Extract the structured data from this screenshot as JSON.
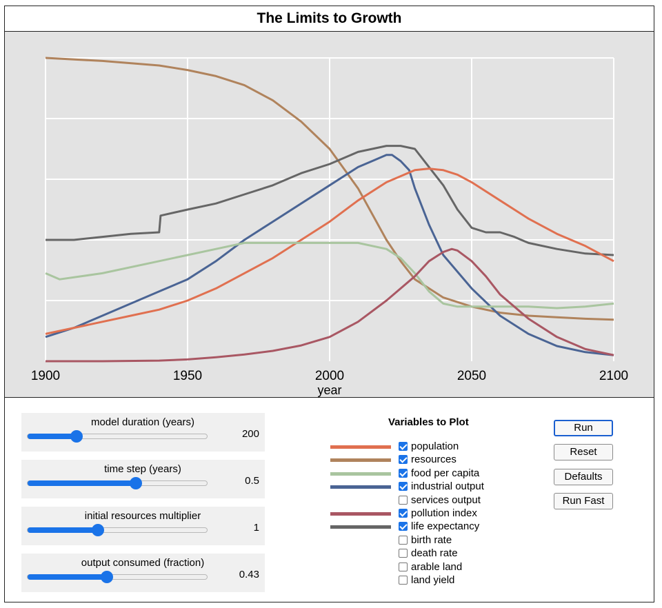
{
  "app": {
    "title": "The Limits to Growth"
  },
  "chart_data": {
    "type": "line",
    "xlabel": "year",
    "xlim": [
      1900,
      2100
    ],
    "xticks": [
      1900,
      1950,
      2000,
      2050,
      2100
    ],
    "ylim": [
      0,
      1
    ],
    "grid": true,
    "series": [
      {
        "name": "resources",
        "color": "#b0835c",
        "x": [
          1900,
          1920,
          1940,
          1950,
          1960,
          1970,
          1980,
          1990,
          2000,
          2010,
          2020,
          2025,
          2030,
          2040,
          2050,
          2060,
          2070,
          2080,
          2090,
          2100
        ],
        "y": [
          1.0,
          0.99,
          0.975,
          0.96,
          0.94,
          0.91,
          0.86,
          0.79,
          0.7,
          0.57,
          0.4,
          0.33,
          0.27,
          0.21,
          0.18,
          0.16,
          0.15,
          0.145,
          0.14,
          0.137
        ]
      },
      {
        "name": "life expectancy",
        "color": "#666666",
        "x": [
          1900,
          1910,
          1920,
          1930,
          1940,
          1940.5,
          1950,
          1960,
          1970,
          1980,
          1990,
          2000,
          2010,
          2020,
          2025,
          2030,
          2035,
          2040,
          2045,
          2050,
          2055,
          2060,
          2065,
          2070,
          2080,
          2090,
          2100
        ],
        "y": [
          0.4,
          0.4,
          0.41,
          0.42,
          0.425,
          0.48,
          0.5,
          0.52,
          0.55,
          0.58,
          0.62,
          0.65,
          0.69,
          0.71,
          0.71,
          0.7,
          0.64,
          0.58,
          0.5,
          0.44,
          0.425,
          0.425,
          0.41,
          0.39,
          0.37,
          0.355,
          0.35
        ]
      },
      {
        "name": "industrial output",
        "color": "#4a6494",
        "x": [
          1900,
          1910,
          1920,
          1930,
          1940,
          1950,
          1960,
          1970,
          1980,
          1990,
          2000,
          2010,
          2015,
          2020,
          2022,
          2025,
          2028,
          2030,
          2035,
          2040,
          2050,
          2060,
          2070,
          2080,
          2090,
          2100
        ],
        "y": [
          0.08,
          0.11,
          0.15,
          0.19,
          0.23,
          0.27,
          0.33,
          0.4,
          0.46,
          0.52,
          0.58,
          0.64,
          0.66,
          0.68,
          0.68,
          0.66,
          0.63,
          0.57,
          0.45,
          0.35,
          0.24,
          0.15,
          0.09,
          0.05,
          0.03,
          0.02
        ]
      },
      {
        "name": "population",
        "color": "#e07050",
        "x": [
          1900,
          1910,
          1920,
          1930,
          1940,
          1950,
          1960,
          1970,
          1980,
          1990,
          2000,
          2010,
          2020,
          2030,
          2035,
          2040,
          2045,
          2050,
          2060,
          2070,
          2080,
          2090,
          2100
        ],
        "y": [
          0.09,
          0.11,
          0.13,
          0.15,
          0.17,
          0.2,
          0.24,
          0.29,
          0.34,
          0.4,
          0.46,
          0.53,
          0.59,
          0.63,
          0.635,
          0.63,
          0.615,
          0.59,
          0.53,
          0.47,
          0.42,
          0.38,
          0.33
        ]
      },
      {
        "name": "food per capita",
        "color": "#a9c59f",
        "x": [
          1900,
          1905,
          1920,
          1940,
          1950,
          1960,
          1970,
          1980,
          1990,
          2000,
          2010,
          2020,
          2025,
          2030,
          2035,
          2040,
          2045,
          2050,
          2060,
          2070,
          2080,
          2090,
          2100
        ],
        "y": [
          0.29,
          0.27,
          0.29,
          0.33,
          0.35,
          0.37,
          0.39,
          0.39,
          0.39,
          0.39,
          0.39,
          0.37,
          0.34,
          0.29,
          0.23,
          0.19,
          0.18,
          0.18,
          0.18,
          0.18,
          0.175,
          0.18,
          0.19
        ]
      },
      {
        "name": "pollution index",
        "color": "#a95763",
        "x": [
          1900,
          1920,
          1940,
          1950,
          1960,
          1970,
          1980,
          1990,
          2000,
          2010,
          2020,
          2030,
          2035,
          2040,
          2043,
          2045,
          2050,
          2055,
          2060,
          2070,
          2080,
          2090,
          2100
        ],
        "y": [
          0.0,
          0.0,
          0.002,
          0.006,
          0.013,
          0.022,
          0.034,
          0.052,
          0.08,
          0.13,
          0.2,
          0.28,
          0.33,
          0.36,
          0.37,
          0.365,
          0.33,
          0.28,
          0.22,
          0.14,
          0.08,
          0.04,
          0.02
        ]
      }
    ]
  },
  "sliders": [
    {
      "label": "model duration (years)",
      "value": "200",
      "fraction": 0.27
    },
    {
      "label": "time step (years)",
      "value": "0.5",
      "fraction": 0.6
    },
    {
      "label": "initial resources multiplier",
      "value": "1",
      "fraction": 0.39
    },
    {
      "label": "output consumed (fraction)",
      "value": "0.43",
      "fraction": 0.44
    }
  ],
  "variables": {
    "title": "Variables to Plot",
    "items": [
      {
        "label": "population",
        "checked": true,
        "color": "#e07050"
      },
      {
        "label": "resources",
        "checked": true,
        "color": "#b0835c"
      },
      {
        "label": "food per capita",
        "checked": true,
        "color": "#a9c59f"
      },
      {
        "label": "industrial output",
        "checked": true,
        "color": "#4a6494"
      },
      {
        "label": "services output",
        "checked": false,
        "color": ""
      },
      {
        "label": "pollution index",
        "checked": true,
        "color": "#a95763"
      },
      {
        "label": "life expectancy",
        "checked": true,
        "color": "#666666"
      },
      {
        "label": "birth rate",
        "checked": false,
        "color": ""
      },
      {
        "label": "death rate",
        "checked": false,
        "color": ""
      },
      {
        "label": "arable land",
        "checked": false,
        "color": ""
      },
      {
        "label": "land yield",
        "checked": false,
        "color": ""
      }
    ]
  },
  "buttons": {
    "run": "Run",
    "reset": "Reset",
    "defaults": "Defaults",
    "run_fast": "Run Fast"
  }
}
